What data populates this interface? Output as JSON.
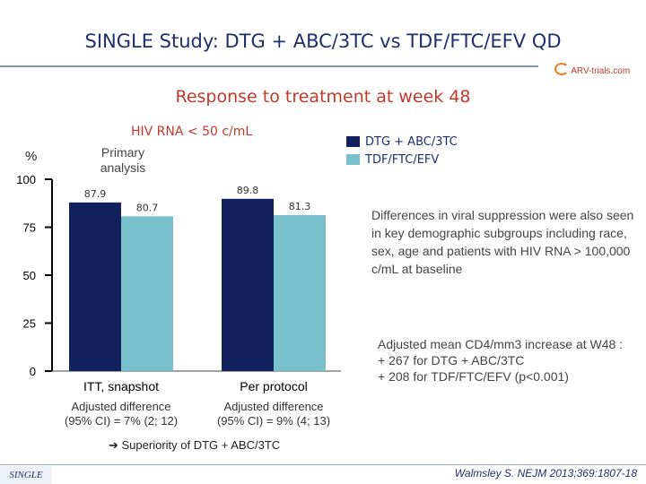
{
  "header": {
    "title": "SINGLE Study: DTG + ABC/3TC vs TDF/FTC/EFV QD",
    "logo_text": "ARV-trials.com",
    "subtitle": "Response to treatment at week 48"
  },
  "chart_data": {
    "type": "bar",
    "title": "HIV RNA < 50 c/mL",
    "ylabel": "%",
    "ylim": [
      0,
      100
    ],
    "yticks": [
      "0",
      "25",
      "50",
      "75",
      "100"
    ],
    "primary_label": "Primary analysis",
    "categories": [
      "ITT, snapshot",
      "Per protocol"
    ],
    "series": [
      {
        "name": "DTG + ABC/3TC",
        "color": "#12205c",
        "values": [
          87.9,
          89.8
        ],
        "labels": [
          "87.9",
          "89.8"
        ]
      },
      {
        "name": "TDF/FTC/EFV",
        "color": "#78c0cb",
        "values": [
          80.7,
          81.3
        ],
        "labels": [
          "80.7",
          "81.3"
        ]
      }
    ],
    "adjusted_differences": [
      "Adjusted difference\n(95% CI) = 7% (2; 12)",
      "Adjusted difference\n(95% CI) = 9% (4; 13)"
    ]
  },
  "notes": {
    "subgroups": "Differences in viral suppression were also seen in key demographic subgroups including race, sex, age and patients with HIV RNA > 100,000 c/mL at baseline",
    "cd4_line1": "Adjusted mean CD4/mm3 increase at W48 :",
    "cd4_line2": "+ 267 for DTG + ABC/3TC",
    "cd4_line3": "+ 208 for TDF/FTC/EFV (p<0.001)"
  },
  "superiority": "Superiority of DTG + ABC/3TC",
  "footer": {
    "study": "SINGLE",
    "citation": "Walmsley S. NEJM 2013;369:1807-18"
  }
}
